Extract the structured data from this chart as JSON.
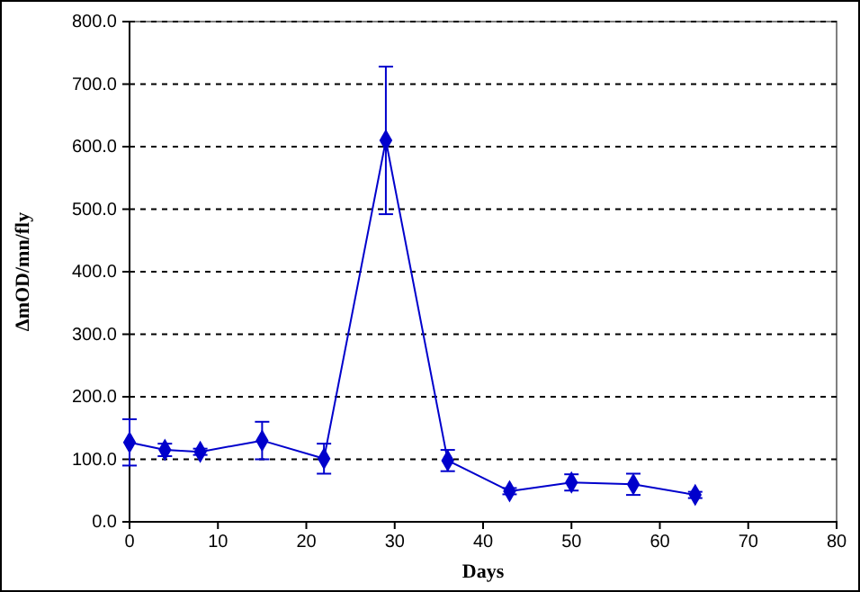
{
  "chart_data": {
    "type": "line",
    "xlabel": "Days",
    "ylabel": "ΔmOD/mn/fly",
    "x": [
      0,
      4,
      8,
      15,
      22,
      29,
      36,
      43,
      50,
      57,
      64
    ],
    "series": [
      {
        "color": "#0000cc",
        "values": [
          127,
          115,
          112,
          130,
          101,
          610,
          98,
          49,
          63,
          60,
          43
        ],
        "errors": [
          37,
          10,
          5,
          30,
          24,
          118,
          17,
          5,
          13,
          17,
          5
        ]
      }
    ],
    "xlim": [
      0,
      80
    ],
    "xticks": [
      0,
      10,
      20,
      30,
      40,
      50,
      60,
      70,
      80
    ],
    "ylim": [
      0,
      800
    ],
    "yticks": [
      {
        "value": 0,
        "label": "0.0"
      },
      {
        "value": 100,
        "label": "100.0"
      },
      {
        "value": 200,
        "label": "200.0"
      },
      {
        "value": 300,
        "label": "300.0"
      },
      {
        "value": 400,
        "label": "400.0"
      },
      {
        "value": 500,
        "label": "500.0"
      },
      {
        "value": 600,
        "label": "600.0"
      },
      {
        "value": 700,
        "label": "700.0"
      },
      {
        "value": 800,
        "label": "800.0"
      }
    ],
    "grid": "y",
    "marker": "diamond",
    "line_style": "solid"
  }
}
